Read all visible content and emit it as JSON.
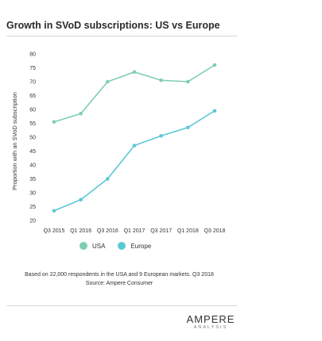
{
  "title": "Growth in SVoD subscriptions: US vs Europe",
  "colors": {
    "usa": "#7fcdb6",
    "europe": "#5bc8d6",
    "grid": "#e6e6e6",
    "rule": "#d8d8d8"
  },
  "legend": {
    "usa": "USA",
    "europe": "Europe"
  },
  "footnote": "Based on 22,000 respondents in the USA and 9 European markets. Q3 2018",
  "source": "Source: Ampere Consumer",
  "logo": {
    "main": "AMPERE",
    "sub": "ANALYSIS"
  },
  "chart_data": {
    "type": "line",
    "title": "Growth in SVoD subscriptions: US vs Europe",
    "xlabel": "",
    "ylabel": "Proportion with an SVoD subscription",
    "ylim": [
      20,
      80
    ],
    "yticks": [
      20,
      25,
      30,
      35,
      40,
      45,
      50,
      55,
      60,
      65,
      70,
      75,
      80
    ],
    "grid": "none",
    "legend_position": "bottom",
    "categories": [
      "Q3 2015",
      "Q1 2016",
      "Q3 2016",
      "Q1 2017",
      "Q3 2017",
      "Q1 2018",
      "Q3 2018"
    ],
    "series": [
      {
        "name": "USA",
        "values": [
          55.5,
          58.5,
          70,
          73.5,
          70.5,
          70,
          76
        ]
      },
      {
        "name": "Europe",
        "values": [
          23.5,
          27.5,
          35,
          47,
          50.5,
          53.5,
          59.5
        ]
      }
    ]
  }
}
